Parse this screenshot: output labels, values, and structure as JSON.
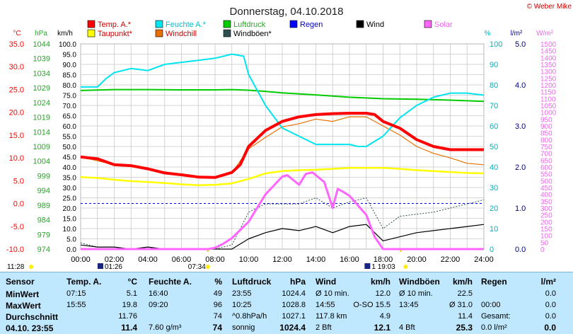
{
  "header": {
    "title": "Donnerstag, 04.10.2018",
    "credit": "© Weber Mike"
  },
  "colors": {
    "temp": "#ff0000",
    "humidity": "#00e5ee",
    "pressure": "#00cc00",
    "rain": "#0000ff",
    "wind": "#000000",
    "solar": "#ff66ff",
    "dewpoint": "#ffff00",
    "windchill": "#e87000",
    "gusts": "#2f4f4f",
    "pressure_axis": "#22aa22",
    "temp_axis": "#ff0000"
  },
  "chart_data": {
    "type": "line",
    "title": "Donnerstag, 04.10.2018",
    "x_ticks": [
      "00:00",
      "02:00",
      "04:00",
      "06:00",
      "08:00",
      "10:00",
      "12:00",
      "14:00",
      "16:00",
      "18:00",
      "20:00",
      "22:00",
      "24:00"
    ],
    "xlim": [
      0,
      24
    ],
    "axes": {
      "temp": {
        "unit": "°C",
        "ticks": [
          "35.0",
          "30.0",
          "25.0",
          "20.0",
          "15.0",
          "10.0",
          "5.0",
          "0.0",
          "-5.0",
          "-10.0"
        ],
        "ylim": [
          -10,
          35
        ]
      },
      "pressure": {
        "unit": "hPa",
        "ticks": [
          "1044",
          "1039",
          "1034",
          "1029",
          "1024",
          "1019",
          "1014",
          "1009",
          "1004",
          "999",
          "994",
          "989",
          "984",
          "979",
          "974"
        ],
        "ylim": [
          974,
          1044
        ]
      },
      "wind": {
        "unit": "km/h",
        "ticks": [
          "100.0",
          "95.0",
          "90.0",
          "85.0",
          "80.0",
          "75.0",
          "70.0",
          "65.0",
          "60.0",
          "55.0",
          "50.0",
          "45.0",
          "40.0",
          "35.0",
          "30.0",
          "25.0",
          "20.0",
          "15.0",
          "10.0",
          "5.0",
          "0.0"
        ],
        "ylim": [
          0,
          100
        ]
      },
      "humidity": {
        "unit": "%",
        "ticks": [
          "100",
          "90",
          "80",
          "70",
          "60",
          "50",
          "40",
          "30",
          "20",
          "10",
          "0"
        ],
        "ylim": [
          0,
          100
        ]
      },
      "rain": {
        "unit": "l/m²",
        "ticks": [
          "5.0",
          "4.0",
          "3.0",
          "2.0",
          "1.0",
          "0.0"
        ],
        "ylim": [
          0,
          5
        ]
      },
      "solar": {
        "unit": "W/m²",
        "ticks": [
          "1500",
          "1450",
          "1400",
          "1350",
          "1300",
          "1250",
          "1200",
          "1150",
          "1100",
          "1050",
          "1000",
          "950",
          "900",
          "850",
          "800",
          "750",
          "700",
          "650",
          "600",
          "550",
          "500",
          "450",
          "400",
          "350",
          "300",
          "250",
          "200",
          "150",
          "100",
          "50",
          "0"
        ],
        "ylim": [
          0,
          1500
        ]
      }
    },
    "legend": [
      "Temp. A.*",
      "Feuchte A.*",
      "Luftdruck",
      "Regen",
      "Wind",
      "Solar",
      "Taupunkt*",
      "Windchill",
      "Windböen*"
    ],
    "series": [
      {
        "name": "Temp. A.*",
        "axis": "temp",
        "x": [
          0,
          1,
          2,
          3,
          4,
          5,
          6,
          7,
          8,
          9,
          9.5,
          10,
          11,
          12,
          13,
          14,
          15,
          16,
          17,
          17.5,
          18,
          19,
          20,
          21,
          22,
          23,
          24
        ],
        "y": [
          10.2,
          9.8,
          8.5,
          8.3,
          7.6,
          6.7,
          6.3,
          5.8,
          5.7,
          6.8,
          8.5,
          12.5,
          16.0,
          18.0,
          19.0,
          19.5,
          19.7,
          19.8,
          19.8,
          19.5,
          18.0,
          16.5,
          14.0,
          12.5,
          11.8,
          11.8,
          11.8
        ]
      },
      {
        "name": "Feuchte A.*",
        "axis": "humidity",
        "x": [
          0,
          0.5,
          1,
          1.5,
          2,
          3,
          4,
          5,
          6,
          7,
          8,
          9,
          9.7,
          10,
          11,
          12,
          13,
          14,
          15,
          16,
          16.5,
          17,
          18,
          19,
          20,
          21,
          22,
          23,
          24
        ],
        "y": [
          79,
          79,
          79,
          83,
          86,
          88,
          87,
          90,
          91,
          92,
          93,
          95,
          94,
          85,
          70,
          59,
          55,
          51,
          51,
          51,
          50,
          50,
          55,
          64,
          70,
          74,
          76,
          76,
          75
        ]
      },
      {
        "name": "Luftdruck",
        "axis": "pressure",
        "x": [
          0,
          2,
          4,
          6,
          8,
          9,
          10,
          11,
          12,
          14,
          16,
          18,
          20,
          22,
          24
        ],
        "y": [
          1028.1,
          1028.4,
          1028.4,
          1028.3,
          1028.3,
          1028.4,
          1028.2,
          1027.8,
          1027.3,
          1026.6,
          1025.8,
          1025.3,
          1025.1,
          1024.8,
          1024.4
        ]
      },
      {
        "name": "Wind",
        "axis": "wind",
        "x": [
          0,
          1,
          2,
          3,
          4,
          5,
          6,
          7,
          8,
          9,
          10,
          11,
          12,
          13,
          14,
          15,
          16,
          17,
          18,
          19,
          20,
          21,
          22,
          23,
          24
        ],
        "y": [
          2,
          1,
          1,
          0,
          1,
          0,
          0,
          0,
          0,
          0,
          5,
          8,
          10,
          9,
          11,
          8,
          11,
          12,
          4,
          6,
          8,
          9,
          10,
          11,
          12
        ]
      },
      {
        "name": "Solar",
        "axis": "solar",
        "x": [
          0,
          7,
          7.6,
          8,
          8.5,
          9,
          10,
          11,
          12,
          12.3,
          13,
          13.4,
          13.8,
          14.5,
          15,
          15.3,
          15.6,
          16,
          17,
          17.5,
          18,
          18.5,
          24
        ],
        "y": [
          0,
          0,
          0,
          10,
          40,
          80,
          200,
          400,
          530,
          540,
          470,
          550,
          560,
          490,
          300,
          440,
          420,
          390,
          250,
          90,
          0,
          0,
          0
        ]
      },
      {
        "name": "Taupunkt*",
        "axis": "temp",
        "x": [
          0,
          1,
          2,
          3,
          4,
          5,
          6,
          7,
          8,
          9,
          10,
          11,
          12,
          13,
          14,
          15,
          16,
          17,
          18,
          19,
          20,
          21,
          22,
          23,
          24
        ],
        "y": [
          5.8,
          5.6,
          5.2,
          4.9,
          4.7,
          4.5,
          4.2,
          4.0,
          4.1,
          4.4,
          5.4,
          6.6,
          7.1,
          7.3,
          7.4,
          7.6,
          7.8,
          7.8,
          7.8,
          7.6,
          7.3,
          7.1,
          6.9,
          6.7,
          6.6
        ]
      },
      {
        "name": "Windchill",
        "axis": "temp",
        "x": [
          0,
          2,
          4,
          6,
          8,
          9,
          10,
          11,
          12,
          13,
          14,
          15,
          16,
          17,
          18,
          19,
          20,
          21,
          22,
          23,
          24
        ],
        "y": [
          10.2,
          8.5,
          7.6,
          6.3,
          5.7,
          6.7,
          12.0,
          14.5,
          16.8,
          17.5,
          18.5,
          18.0,
          19.0,
          19.0,
          17.0,
          15.0,
          12.5,
          11.0,
          10.0,
          8.8,
          8.5
        ]
      },
      {
        "name": "Windböen*",
        "axis": "wind",
        "x": [
          0,
          1,
          2,
          3,
          4,
          5,
          6,
          7,
          8,
          9,
          10,
          11,
          12,
          13,
          14,
          15,
          16,
          17,
          18,
          19,
          20,
          21,
          22,
          23,
          24
        ],
        "y": [
          3,
          1,
          1,
          0,
          1,
          0,
          0,
          0,
          0,
          2,
          18,
          22,
          22,
          22,
          25,
          20,
          23,
          25,
          10,
          16,
          17,
          18,
          20,
          22,
          24
        ]
      }
    ],
    "markers": {
      "sunrise": "07:34",
      "sunset": "19:03",
      "moonrise": "01:26",
      "moonset": "19:03",
      "left_label": "11:28"
    }
  },
  "stats": {
    "row_labels": [
      "Sensor",
      "MinWert",
      "MaxWert",
      "Durchschnitt",
      "04.10. 23:55"
    ],
    "temp": {
      "head": "Temp. A.",
      "unit": "°C",
      "rows": [
        [
          "07:15",
          "5.1"
        ],
        [
          "15:55",
          "19.8"
        ],
        [
          "",
          "11.76"
        ],
        [
          "",
          "11.4"
        ]
      ]
    },
    "hum": {
      "head": "Feuchte A.",
      "unit": "%",
      "rows": [
        [
          "16:40",
          "49"
        ],
        [
          "09:20",
          "96"
        ],
        [
          "",
          "74"
        ],
        [
          "7.60 g/m³",
          "74"
        ]
      ]
    },
    "press": {
      "head": "Luftdruck",
      "unit": "hPa",
      "rows": [
        [
          "23:55",
          "1024.4"
        ],
        [
          "10:25",
          "1028.8"
        ],
        [
          "^0.8hPa/h",
          "1027.1"
        ],
        [
          "sonnig",
          "1024.4"
        ]
      ]
    },
    "wind": {
      "head": "Wind",
      "unit": "km/h",
      "rows": [
        [
          "Ø 10 min.",
          "12.0"
        ],
        [
          "14:55",
          "O-SO 15.5"
        ],
        [
          "117.8 km",
          "4.9"
        ],
        [
          "2 Bft",
          "12.1"
        ]
      ]
    },
    "gust": {
      "head": "Windböen",
      "unit": "km/h",
      "rows": [
        [
          "Ø 10 min.",
          "22.5"
        ],
        [
          "13:45",
          "Ø 31.0"
        ],
        [
          "",
          "11.4"
        ],
        [
          "4 Bft",
          "25.3"
        ]
      ]
    },
    "rain": {
      "head": "Regen",
      "unit": "l/m²",
      "rows": [
        [
          "",
          "0.0"
        ],
        [
          "00:00",
          "0.0"
        ],
        [
          "Gesamt:",
          "0.0"
        ],
        [
          "0.0 l/m²",
          "0.0"
        ]
      ]
    }
  }
}
